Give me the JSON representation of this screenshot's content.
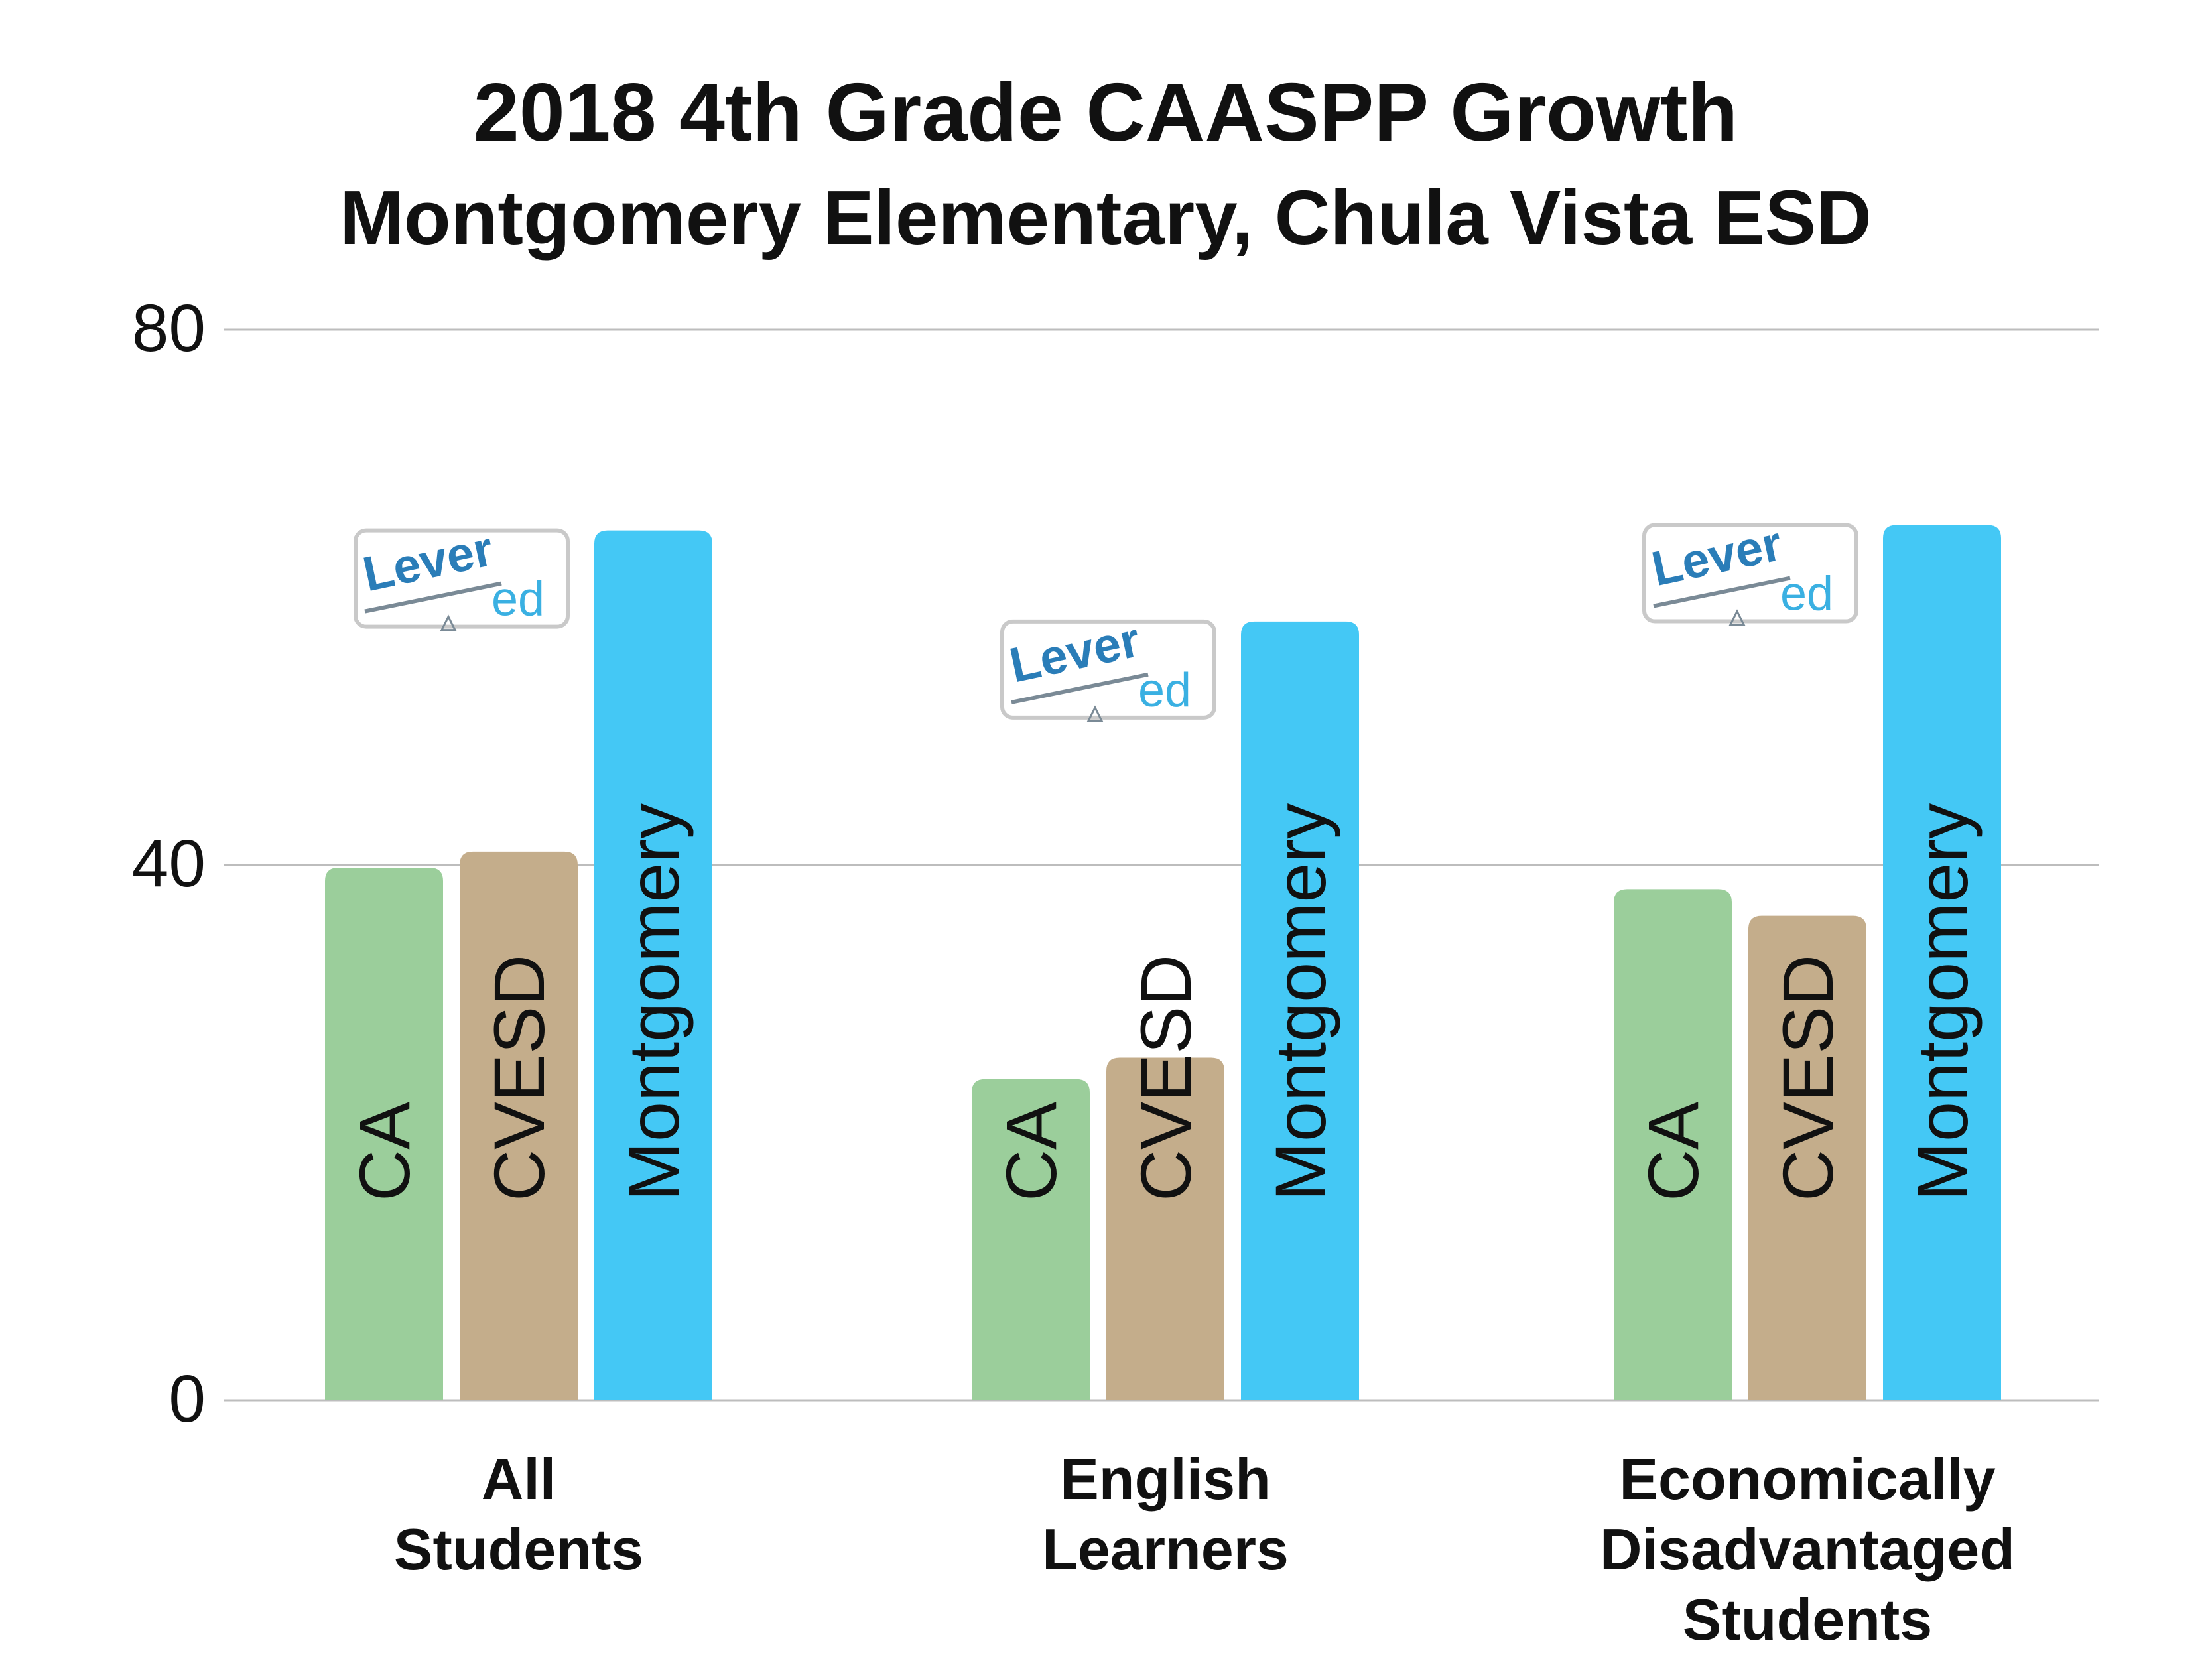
{
  "chart_data": {
    "type": "bar",
    "title": "2018 4th Grade CAASPP Growth",
    "subtitle": "Montgomery Elementary, Chula Vista ESD",
    "categories": [
      [
        "All",
        "Students"
      ],
      [
        "English",
        "Learners"
      ],
      [
        "Economically",
        "Disadvantaged",
        "Students"
      ]
    ],
    "series": [
      {
        "name": "CA",
        "color": "#9bce9b",
        "values": [
          39.8,
          24,
          38.2
        ]
      },
      {
        "name": "CVESD",
        "color": "#c4ad8b",
        "values": [
          41,
          25.6,
          36.2
        ]
      },
      {
        "name": "Montgomery",
        "color": "#44c8f5",
        "values": [
          65,
          58.2,
          65.4
        ]
      }
    ],
    "ylim": [
      0,
      80
    ],
    "yticks": [
      0,
      40,
      80
    ],
    "grid": true,
    "legend": "none",
    "watermark": {
      "text_main": "Lever",
      "text_sub": "ed"
    }
  }
}
